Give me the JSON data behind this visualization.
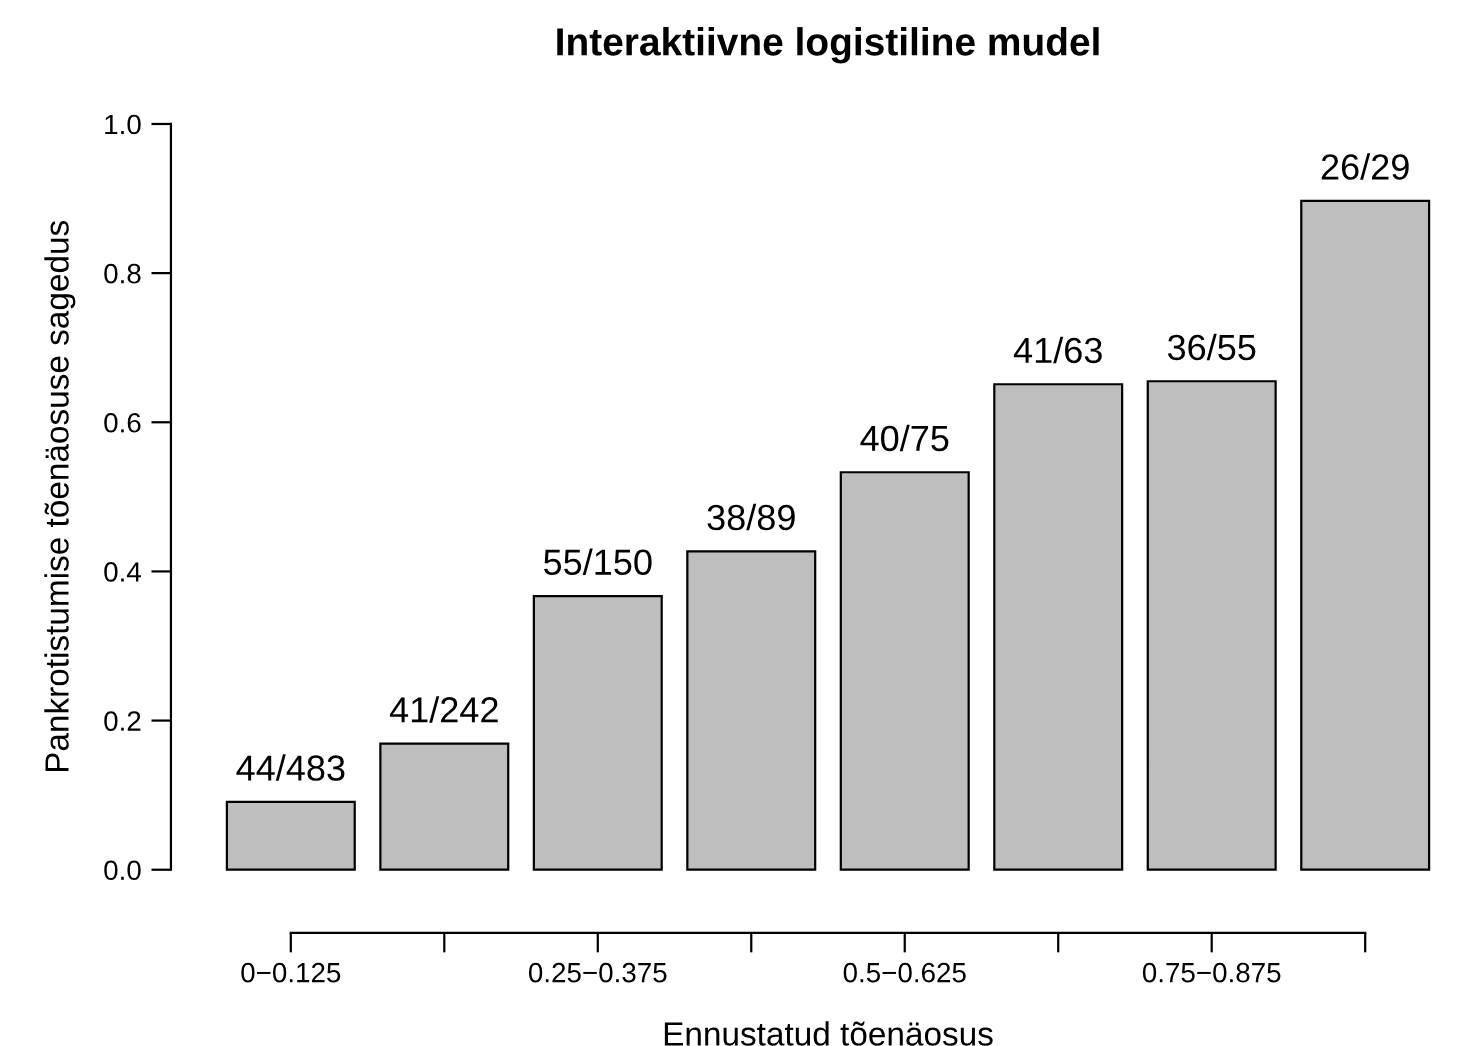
{
  "chart_data": {
    "type": "bar",
    "title": "Interaktiivne logistiline mudel",
    "xlabel": "Ennustatud tõenäosus",
    "ylabel": "Pankrotistumise tõenäosuse sagedus",
    "categories": [
      "0−0.125",
      null,
      "0.25−0.375",
      null,
      "0.5−0.625",
      null,
      "0.75−0.875",
      null
    ],
    "values": [
      0.091,
      0.169,
      0.367,
      0.427,
      0.533,
      0.651,
      0.655,
      0.897
    ],
    "value_labels": [
      "44/483",
      "41/242",
      "55/150",
      "38/89",
      "40/75",
      "41/63",
      "36/55",
      "26/29"
    ],
    "color": "#bebebe",
    "ylim": [
      0,
      1
    ],
    "yticks": [
      {
        "value": 0,
        "label": "0.0"
      },
      {
        "value": 0.2,
        "label": "0.2"
      },
      {
        "value": 0.4,
        "label": "0.4"
      },
      {
        "value": 0.6,
        "label": "0.6"
      },
      {
        "value": 0.8,
        "label": "0.8"
      },
      {
        "value": 1,
        "label": "1.0"
      }
    ],
    "grid": false,
    "legend": false
  }
}
